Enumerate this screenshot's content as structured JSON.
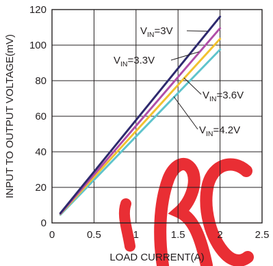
{
  "chart_data": {
    "type": "line",
    "title": "",
    "xlabel": "LOAD CURRENT(A)",
    "ylabel": "INPUT TO OUTPUT VOLTAGE(mV)",
    "xlim": [
      0,
      2.5
    ],
    "ylim": [
      0,
      120
    ],
    "xticks": [
      "0",
      "0.5",
      "1",
      "1.5",
      "2",
      "2.5"
    ],
    "yticks": [
      "0",
      "20",
      "40",
      "60",
      "80",
      "100",
      "120"
    ],
    "grid": true,
    "series": [
      {
        "name": "VIN=3V",
        "label_main": "V",
        "label_sub": "IN",
        "label_rest": "=3V",
        "color": "#2e2a6e",
        "x": [
          0.1,
          2.0
        ],
        "y": [
          5.5,
          116
        ]
      },
      {
        "name": "VIN=3.3V",
        "label_main": "V",
        "label_sub": "IN",
        "label_rest": "=3.3V",
        "color": "#b04ea8",
        "x": [
          0.1,
          2.0
        ],
        "y": [
          5.2,
          109.5
        ]
      },
      {
        "name": "VIN=3.6V",
        "label_main": "V",
        "label_sub": "IN",
        "label_rest": "=3.6V",
        "color": "#f2c230",
        "x": [
          0.1,
          2.0
        ],
        "y": [
          5.0,
          103.5
        ]
      },
      {
        "name": "VIN=4.2V",
        "label_main": "V",
        "label_sub": "IN",
        "label_rest": "=4.2V",
        "color": "#5fc4cc",
        "x": [
          0.1,
          2.0
        ],
        "y": [
          4.6,
          97.5
        ]
      }
    ]
  },
  "watermark": {
    "text": "RCS",
    "color": "#e8232a"
  }
}
